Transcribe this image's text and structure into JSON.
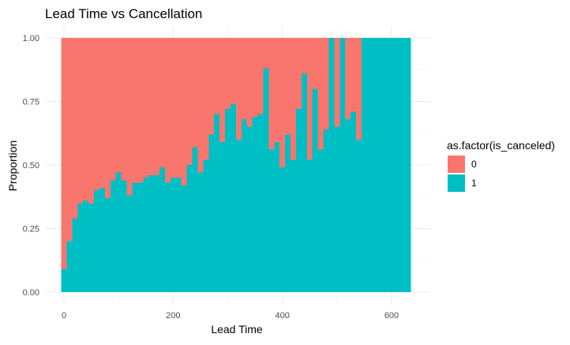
{
  "chart_data": {
    "type": "bar",
    "subtype": "stacked-proportion-histogram",
    "title": "Lead Time vs Cancellation",
    "xlabel": "Lead Time",
    "ylabel": "Proportion",
    "xlim": [
      -5,
      640
    ],
    "ylim": [
      0,
      1
    ],
    "x_ticks": [
      0,
      200,
      400,
      600
    ],
    "y_ticks": [
      0.0,
      0.25,
      0.5,
      0.75,
      1.0
    ],
    "y_tick_labels": [
      "0.00",
      "0.25",
      "0.50",
      "0.75",
      "1.00"
    ],
    "grid": true,
    "legend": {
      "title": "as.factor(is_canceled)",
      "position": "right",
      "entries": [
        {
          "label": "0",
          "color": "#F8766D"
        },
        {
          "label": "1",
          "color": "#00BFC4"
        }
      ]
    },
    "bin_width": 10,
    "bin_centers": [
      0,
      10,
      20,
      30,
      40,
      50,
      60,
      70,
      80,
      90,
      100,
      110,
      120,
      130,
      140,
      150,
      160,
      170,
      180,
      190,
      200,
      210,
      220,
      230,
      240,
      250,
      260,
      270,
      280,
      290,
      300,
      310,
      320,
      330,
      340,
      350,
      360,
      370,
      380,
      390,
      400,
      410,
      420,
      430,
      440,
      450,
      460,
      470,
      480,
      490,
      500,
      510,
      520,
      530,
      540,
      550,
      560,
      570,
      580,
      590,
      600,
      610,
      620,
      630
    ],
    "series": [
      {
        "name": "1",
        "color": "#00BFC4",
        "values": [
          0.09,
          0.2,
          0.29,
          0.35,
          0.36,
          0.35,
          0.4,
          0.41,
          0.37,
          0.44,
          0.47,
          0.44,
          0.38,
          0.43,
          0.43,
          0.45,
          0.46,
          0.46,
          0.49,
          0.43,
          0.45,
          0.45,
          0.42,
          0.5,
          0.57,
          0.47,
          0.52,
          0.62,
          0.7,
          0.59,
          0.72,
          0.74,
          0.6,
          0.68,
          0.65,
          0.69,
          0.7,
          0.88,
          0.56,
          0.59,
          0.49,
          0.62,
          0.52,
          0.72,
          0.86,
          0.52,
          0.8,
          0.56,
          0.64,
          1.0,
          0.65,
          1.0,
          0.68,
          0.71,
          0.6,
          1.0,
          1.0,
          1.0,
          1.0,
          1.0,
          1.0,
          1.0,
          1.0,
          1.0
        ]
      },
      {
        "name": "0",
        "color": "#F8766D",
        "values": [
          0.91,
          0.8,
          0.71,
          0.65,
          0.64,
          0.65,
          0.6,
          0.59,
          0.63,
          0.56,
          0.53,
          0.56,
          0.62,
          0.57,
          0.57,
          0.55,
          0.54,
          0.54,
          0.51,
          0.57,
          0.55,
          0.55,
          0.58,
          0.5,
          0.43,
          0.53,
          0.48,
          0.38,
          0.3,
          0.41,
          0.28,
          0.26,
          0.4,
          0.32,
          0.35,
          0.31,
          0.3,
          0.12,
          0.44,
          0.41,
          0.51,
          0.38,
          0.48,
          0.28,
          0.14,
          0.48,
          0.2,
          0.44,
          0.36,
          0.0,
          0.35,
          0.0,
          0.32,
          0.29,
          0.4,
          0.0,
          0.0,
          0.0,
          0.0,
          0.0,
          0.0,
          0.0,
          0.0,
          0.0
        ]
      }
    ]
  }
}
